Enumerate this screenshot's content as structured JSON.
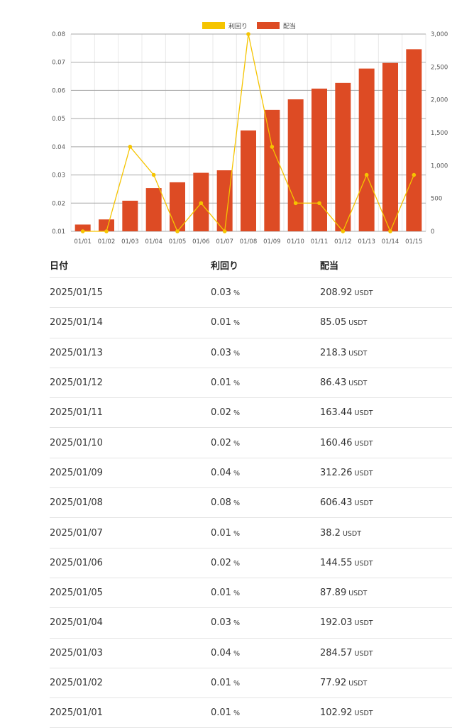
{
  "chart_data": {
    "type": "bar",
    "categories": [
      "01/01",
      "01/02",
      "01/03",
      "01/04",
      "01/05",
      "01/06",
      "01/07",
      "01/08",
      "01/09",
      "01/10",
      "01/11",
      "01/12",
      "01/13",
      "01/14",
      "01/15"
    ],
    "series": [
      {
        "name": "配当",
        "type": "bar",
        "axis": "right",
        "color": "#dd4b24",
        "values": [
          102.92,
          180.84,
          465.41,
          657.44,
          745.33,
          889.88,
          928.08,
          1534.51,
          1846.77,
          2007.23,
          2170.67,
          2257.1,
          2475.4,
          2560.45,
          2769.37
        ]
      },
      {
        "name": "利回り",
        "type": "line",
        "axis": "left",
        "color": "#f5c400",
        "values": [
          0.01,
          0.01,
          0.04,
          0.03,
          0.01,
          0.02,
          0.01,
          0.08,
          0.04,
          0.02,
          0.02,
          0.01,
          0.03,
          0.01,
          0.03
        ]
      }
    ],
    "ylim_left": [
      0.01,
      0.08
    ],
    "yticks_left": [
      "0.08",
      "0.07",
      "0.06",
      "0.05",
      "0.04",
      "0.03",
      "0.02",
      "0.01"
    ],
    "ylim_right": [
      0,
      3000
    ],
    "yticks_right": [
      "3,000",
      "2,500",
      "2,000",
      "1,500",
      "1,000",
      "500",
      "0"
    ],
    "legend_position": "top-center",
    "grid": true
  },
  "table": {
    "headers": {
      "date": "日付",
      "yield": "利回り",
      "dividend": "配当"
    },
    "yield_unit": "%",
    "dividend_unit": "USDT",
    "rows": [
      {
        "date": "2025/01/15",
        "yield": "0.03",
        "dividend": "208.92"
      },
      {
        "date": "2025/01/14",
        "yield": "0.01",
        "dividend": "85.05"
      },
      {
        "date": "2025/01/13",
        "yield": "0.03",
        "dividend": "218.3"
      },
      {
        "date": "2025/01/12",
        "yield": "0.01",
        "dividend": "86.43"
      },
      {
        "date": "2025/01/11",
        "yield": "0.02",
        "dividend": "163.44"
      },
      {
        "date": "2025/01/10",
        "yield": "0.02",
        "dividend": "160.46"
      },
      {
        "date": "2025/01/09",
        "yield": "0.04",
        "dividend": "312.26"
      },
      {
        "date": "2025/01/08",
        "yield": "0.08",
        "dividend": "606.43"
      },
      {
        "date": "2025/01/07",
        "yield": "0.01",
        "dividend": "38.2"
      },
      {
        "date": "2025/01/06",
        "yield": "0.02",
        "dividend": "144.55"
      },
      {
        "date": "2025/01/05",
        "yield": "0.01",
        "dividend": "87.89"
      },
      {
        "date": "2025/01/04",
        "yield": "0.03",
        "dividend": "192.03"
      },
      {
        "date": "2025/01/03",
        "yield": "0.04",
        "dividend": "284.57"
      },
      {
        "date": "2025/01/02",
        "yield": "0.01",
        "dividend": "77.92"
      },
      {
        "date": "2025/01/01",
        "yield": "0.01",
        "dividend": "102.92"
      }
    ]
  }
}
